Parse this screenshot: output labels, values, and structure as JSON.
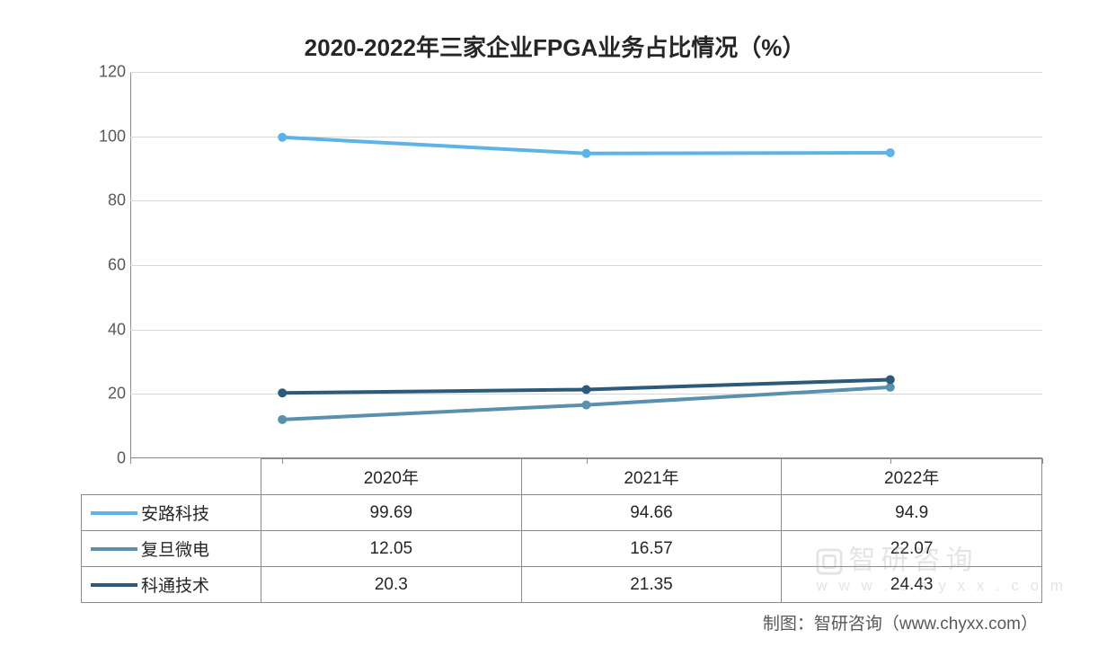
{
  "chart": {
    "type": "line",
    "title": "2020-2022年三家企业FPGA业务占比情况（%）",
    "title_fontsize": 26,
    "title_color": "#262626",
    "background_color": "#ffffff",
    "grid_color": "#d9d9d9",
    "axis_color": "#8c8c8c",
    "tick_label_color": "#595959",
    "tick_fontsize": 18,
    "ylim": [
      0,
      120
    ],
    "ytick_step": 20,
    "yticks": [
      0,
      20,
      40,
      60,
      80,
      100,
      120
    ],
    "categories": [
      "2020年",
      "2021年",
      "2022年"
    ],
    "line_width": 4,
    "marker_radius": 5,
    "series": [
      {
        "name": "安路科技",
        "color": "#5db4e4",
        "values": [
          99.69,
          94.66,
          94.9
        ]
      },
      {
        "name": "复旦微电",
        "color": "#5990ad",
        "values": [
          12.05,
          16.57,
          22.07
        ]
      },
      {
        "name": "科通技术",
        "color": "#2c5a7a",
        "values": [
          20.3,
          21.35,
          24.43
        ]
      }
    ],
    "x_positions_pct": [
      16.67,
      50,
      83.33
    ]
  },
  "credit": "制图：智研咨询（www.chyxx.com）",
  "watermark": {
    "line1": "智研咨询",
    "line2": "w w w . c h y x x . c o m"
  }
}
